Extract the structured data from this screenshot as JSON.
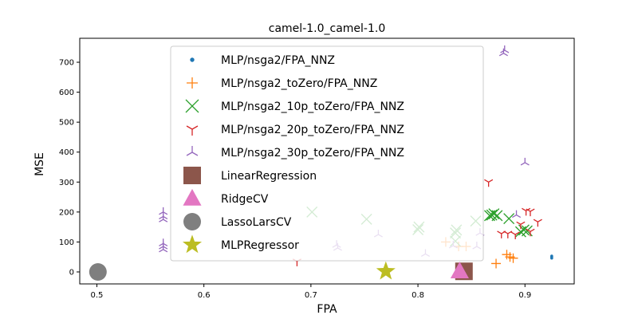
{
  "chart_data": {
    "type": "scatter",
    "title": "camel-1.0_camel-1.0",
    "xlabel": "FPA",
    "ylabel": "MSE",
    "xlim": [
      0.484,
      0.946
    ],
    "ylim": [
      -40,
      780
    ],
    "xticks": [
      "0.5",
      "0.6",
      "0.7",
      "0.8",
      "0.9"
    ],
    "yticks": [
      "0",
      "100",
      "200",
      "300",
      "400",
      "500",
      "600",
      "700"
    ],
    "legend_position": "upper-center",
    "grid": false,
    "series": [
      {
        "name": "MLP/nsga2/FPA_NNZ",
        "marker": "dot",
        "color": "#1f77b4",
        "points": [
          [
            0.925,
            46
          ],
          [
            0.925,
            50
          ],
          [
            0.925,
            53
          ]
        ]
      },
      {
        "name": "MLP/nsga2_toZero/FPA_NNZ",
        "marker": "plus",
        "color": "#ff7f0e",
        "points": [
          [
            0.873,
            28
          ],
          [
            0.883,
            58
          ],
          [
            0.886,
            50
          ],
          [
            0.889,
            46
          ],
          [
            0.845,
            85
          ],
          [
            0.826,
            100
          ],
          [
            0.838,
            85
          ]
        ]
      },
      {
        "name": "MLP/nsga2_10p_toZero/FPA_NNZ",
        "marker": "x",
        "color": "#2ca02c",
        "points": [
          [
            0.867,
            188
          ],
          [
            0.871,
            194
          ],
          [
            0.869,
            190
          ],
          [
            0.874,
            188
          ],
          [
            0.885,
            178
          ],
          [
            0.896,
            134
          ],
          [
            0.899,
            140
          ],
          [
            0.902,
            137
          ],
          [
            0.701,
            200
          ],
          [
            0.752,
            176
          ],
          [
            0.801,
            150
          ],
          [
            0.8,
            141
          ],
          [
            0.835,
            130
          ],
          [
            0.836,
            140
          ],
          [
            0.854,
            170
          ],
          [
            0.835,
            103
          ]
        ]
      },
      {
        "name": "MLP/nsga2_20p_toZero/FPA_NNZ",
        "marker": "tri_down",
        "color": "#d62728",
        "points": [
          [
            0.866,
            300
          ],
          [
            0.687,
            35
          ],
          [
            0.878,
            128
          ],
          [
            0.884,
            128
          ],
          [
            0.891,
            125
          ],
          [
            0.896,
            159
          ],
          [
            0.901,
            204
          ],
          [
            0.905,
            202
          ],
          [
            0.912,
            167
          ],
          [
            0.905,
            135
          ]
        ]
      },
      {
        "name": "MLP/nsga2_30p_toZero/FPA_NNZ",
        "marker": "tri_up",
        "color": "#9467bd",
        "points": [
          [
            0.562,
            200
          ],
          [
            0.562,
            185
          ],
          [
            0.562,
            175
          ],
          [
            0.562,
            95
          ],
          [
            0.562,
            85
          ],
          [
            0.562,
            75
          ],
          [
            0.88,
            730
          ],
          [
            0.881,
            740
          ],
          [
            0.9,
            365
          ],
          [
            0.892,
            190
          ],
          [
            0.724,
            90
          ],
          [
            0.725,
            80
          ],
          [
            0.763,
            125
          ],
          [
            0.807,
            60
          ],
          [
            0.833,
            88
          ],
          [
            0.855,
            85
          ],
          [
            0.858,
            130
          ]
        ]
      },
      {
        "name": "LinearRegression",
        "marker": "square",
        "color": "#8c564b",
        "points": [
          [
            0.843,
            2
          ]
        ]
      },
      {
        "name": "RidgeCV",
        "marker": "triangle",
        "color": "#e377c2",
        "points": [
          [
            0.839,
            2
          ]
        ]
      },
      {
        "name": "LassoLarsCV",
        "marker": "circle",
        "color": "#7f7f7f",
        "points": [
          [
            0.501,
            0
          ]
        ]
      },
      {
        "name": "MLPRegressor",
        "marker": "star",
        "color": "#bcbd22",
        "points": [
          [
            0.77,
            2
          ]
        ]
      }
    ]
  }
}
